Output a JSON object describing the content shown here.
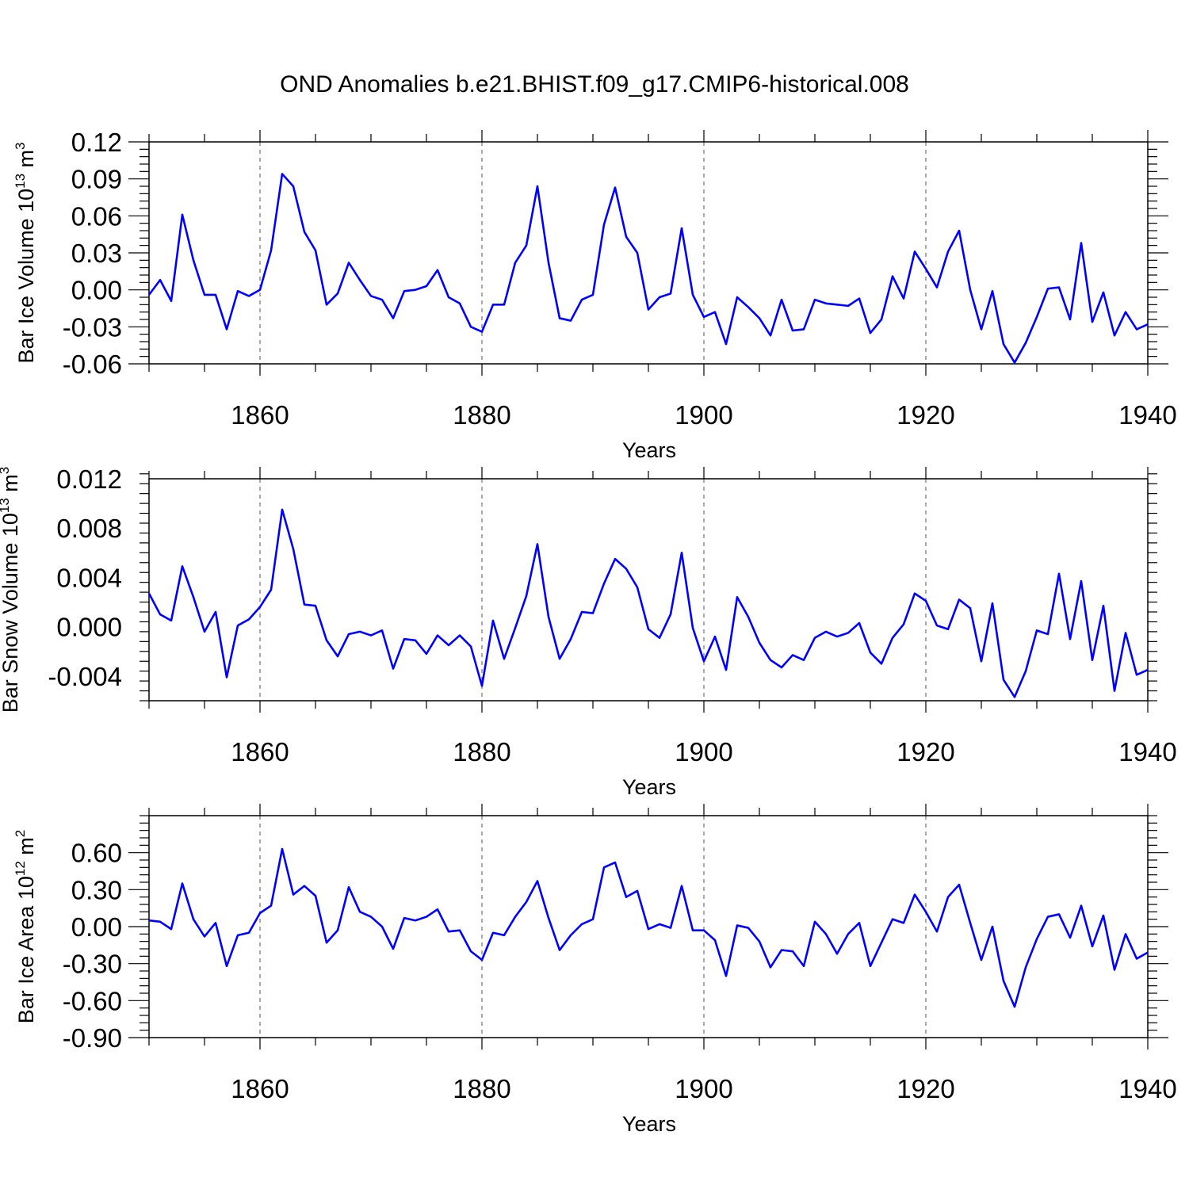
{
  "title": "OND Anomalies b.e21.BHIST.f09_g17.CMIP6-historical.008",
  "colors": {
    "line": "#0000ff",
    "axis": "#000000",
    "grid": "#555555"
  },
  "chart_data": [
    {
      "type": "line",
      "ylabel_main": "Bar Ice Volume 10",
      "ylabel_exp": "13",
      "ylabel_unit": "m",
      "ylabel_unit_exp": "3",
      "xlabel": "Years",
      "xlim": [
        1850,
        1940
      ],
      "ylim": [
        -0.06,
        0.12
      ],
      "xticks": [
        1860,
        1880,
        1900,
        1920,
        1940
      ],
      "yticks": [
        -0.06,
        -0.03,
        0.0,
        0.03,
        0.06,
        0.09,
        0.12
      ],
      "ytick_labels": [
        "-0.06",
        "-0.03",
        "0.00",
        "0.03",
        "0.06",
        "0.09",
        "0.12"
      ],
      "grid": "vertical dashed at major x ticks",
      "x": [
        1850,
        1851,
        1852,
        1853,
        1854,
        1855,
        1856,
        1857,
        1858,
        1859,
        1860,
        1861,
        1862,
        1863,
        1864,
        1865,
        1866,
        1867,
        1868,
        1869,
        1870,
        1871,
        1872,
        1873,
        1874,
        1875,
        1876,
        1877,
        1878,
        1879,
        1880,
        1881,
        1882,
        1883,
        1884,
        1885,
        1886,
        1887,
        1888,
        1889,
        1890,
        1891,
        1892,
        1893,
        1894,
        1895,
        1896,
        1897,
        1898,
        1899,
        1900,
        1901,
        1902,
        1903,
        1904,
        1905,
        1906,
        1907,
        1908,
        1909,
        1910,
        1911,
        1912,
        1913,
        1914,
        1915,
        1916,
        1917,
        1918,
        1919,
        1920,
        1921,
        1922,
        1923,
        1924,
        1925,
        1926,
        1927,
        1928,
        1929,
        1930,
        1931,
        1932,
        1933,
        1934,
        1935,
        1936,
        1937,
        1938,
        1939,
        1940
      ],
      "series": [
        {
          "values": [
            -0.004,
            0.008,
            -0.009,
            0.061,
            0.024,
            -0.004,
            -0.004,
            -0.032,
            -0.001,
            -0.005,
            0.0,
            0.032,
            0.094,
            0.084,
            0.047,
            0.032,
            -0.012,
            -0.003,
            0.022,
            0.008,
            -0.005,
            -0.008,
            -0.023,
            -0.001,
            0.0,
            0.003,
            0.016,
            -0.006,
            -0.011,
            -0.03,
            -0.034,
            -0.012,
            -0.012,
            0.022,
            0.036,
            0.084,
            0.022,
            -0.023,
            -0.025,
            -0.008,
            -0.004,
            0.053,
            0.083,
            0.043,
            0.03,
            -0.016,
            -0.006,
            -0.003,
            0.05,
            -0.004,
            -0.022,
            -0.018,
            -0.044,
            -0.006,
            -0.014,
            -0.023,
            -0.037,
            -0.008,
            -0.033,
            -0.032,
            -0.008,
            -0.011,
            -0.012,
            -0.013,
            -0.007,
            -0.035,
            -0.024,
            0.011,
            -0.007,
            0.031,
            0.017,
            0.002,
            0.031,
            0.048,
            0.0,
            -0.032,
            -0.001,
            -0.044,
            -0.059,
            -0.043,
            -0.022,
            0.001,
            0.002,
            -0.024,
            0.038,
            -0.026,
            -0.002,
            -0.037,
            -0.018,
            -0.032,
            -0.028
          ]
        }
      ]
    },
    {
      "type": "line",
      "ylabel_main": "Bar Snow Volume 10",
      "ylabel_exp": "13",
      "ylabel_unit": "m",
      "ylabel_unit_exp": "3",
      "xlabel": "Years",
      "xlim": [
        1850,
        1940
      ],
      "ylim": [
        -0.006,
        0.012
      ],
      "xticks": [
        1860,
        1880,
        1900,
        1920,
        1940
      ],
      "yticks": [
        -0.004,
        0.0,
        0.004,
        0.008,
        0.012
      ],
      "ytick_labels": [
        "-0.004",
        "0.000",
        "0.004",
        "0.008",
        "0.012"
      ],
      "grid": "vertical dashed at major x ticks",
      "x": [
        1850,
        1851,
        1852,
        1853,
        1854,
        1855,
        1856,
        1857,
        1858,
        1859,
        1860,
        1861,
        1862,
        1863,
        1864,
        1865,
        1866,
        1867,
        1868,
        1869,
        1870,
        1871,
        1872,
        1873,
        1874,
        1875,
        1876,
        1877,
        1878,
        1879,
        1880,
        1881,
        1882,
        1883,
        1884,
        1885,
        1886,
        1887,
        1888,
        1889,
        1890,
        1891,
        1892,
        1893,
        1894,
        1895,
        1896,
        1897,
        1898,
        1899,
        1900,
        1901,
        1902,
        1903,
        1904,
        1905,
        1906,
        1907,
        1908,
        1909,
        1910,
        1911,
        1912,
        1913,
        1914,
        1915,
        1916,
        1917,
        1918,
        1919,
        1920,
        1921,
        1922,
        1923,
        1924,
        1925,
        1926,
        1927,
        1928,
        1929,
        1930,
        1931,
        1932,
        1933,
        1934,
        1935,
        1936,
        1937,
        1938,
        1939,
        1940
      ],
      "series": [
        {
          "values": [
            0.0027,
            0.001,
            0.0005,
            0.0049,
            0.0024,
            -0.0004,
            0.0012,
            -0.0041,
            0.0001,
            0.0006,
            0.0016,
            0.003,
            0.0095,
            0.0063,
            0.0018,
            0.0017,
            -0.0011,
            -0.0024,
            -0.0006,
            -0.0004,
            -0.0007,
            -0.0003,
            -0.0034,
            -0.001,
            -0.0011,
            -0.0022,
            -0.0007,
            -0.0015,
            -0.0007,
            -0.0016,
            -0.0048,
            0.0005,
            -0.0026,
            -0.0001,
            0.0025,
            0.0067,
            0.0008,
            -0.0026,
            -0.001,
            0.0012,
            0.0011,
            0.0035,
            0.0055,
            0.0047,
            0.0032,
            -0.0002,
            -0.0009,
            0.001,
            0.006,
            -0.0001,
            -0.0028,
            -0.0008,
            -0.0035,
            0.0024,
            0.0008,
            -0.0013,
            -0.0027,
            -0.0033,
            -0.0023,
            -0.0027,
            -0.0009,
            -0.0004,
            -0.0008,
            -0.0005,
            0.0003,
            -0.0021,
            -0.003,
            -0.0009,
            0.0002,
            0.0027,
            0.0021,
            0.0001,
            -0.0002,
            0.0022,
            0.0015,
            -0.0028,
            0.0019,
            -0.0043,
            -0.0057,
            -0.0036,
            -0.0003,
            -0.0006,
            0.0043,
            -0.001,
            0.0037,
            -0.0027,
            0.0017,
            -0.0052,
            -0.0005,
            -0.0039,
            -0.0035
          ]
        }
      ]
    },
    {
      "type": "line",
      "ylabel_main": "Bar Ice Area 10",
      "ylabel_exp": "12",
      "ylabel_unit": "m",
      "ylabel_unit_exp": "2",
      "xlabel": "Years",
      "xlim": [
        1850,
        1940
      ],
      "ylim": [
        -0.9,
        0.9
      ],
      "xticks": [
        1860,
        1880,
        1900,
        1920,
        1940
      ],
      "yticks": [
        -0.9,
        -0.6,
        -0.3,
        0.0,
        0.3,
        0.6
      ],
      "ytick_labels": [
        "-0.90",
        "-0.60",
        "-0.30",
        "0.00",
        "0.30",
        "0.60"
      ],
      "grid": "vertical dashed at major x ticks",
      "x": [
        1850,
        1851,
        1852,
        1853,
        1854,
        1855,
        1856,
        1857,
        1858,
        1859,
        1860,
        1861,
        1862,
        1863,
        1864,
        1865,
        1866,
        1867,
        1868,
        1869,
        1870,
        1871,
        1872,
        1873,
        1874,
        1875,
        1876,
        1877,
        1878,
        1879,
        1880,
        1881,
        1882,
        1883,
        1884,
        1885,
        1886,
        1887,
        1888,
        1889,
        1890,
        1891,
        1892,
        1893,
        1894,
        1895,
        1896,
        1897,
        1898,
        1899,
        1900,
        1901,
        1902,
        1903,
        1904,
        1905,
        1906,
        1907,
        1908,
        1909,
        1910,
        1911,
        1912,
        1913,
        1914,
        1915,
        1916,
        1917,
        1918,
        1919,
        1920,
        1921,
        1922,
        1923,
        1924,
        1925,
        1926,
        1927,
        1928,
        1929,
        1930,
        1931,
        1932,
        1933,
        1934,
        1935,
        1936,
        1937,
        1938,
        1939,
        1940
      ],
      "series": [
        {
          "values": [
            0.05,
            0.04,
            -0.02,
            0.35,
            0.06,
            -0.08,
            0.03,
            -0.32,
            -0.07,
            -0.05,
            0.11,
            0.17,
            0.63,
            0.26,
            0.33,
            0.25,
            -0.13,
            -0.03,
            0.32,
            0.12,
            0.08,
            0.0,
            -0.18,
            0.07,
            0.05,
            0.08,
            0.14,
            -0.04,
            -0.03,
            -0.2,
            -0.27,
            -0.05,
            -0.07,
            0.08,
            0.2,
            0.37,
            0.07,
            -0.19,
            -0.07,
            0.02,
            0.06,
            0.48,
            0.52,
            0.24,
            0.29,
            -0.02,
            0.02,
            -0.01,
            0.33,
            -0.03,
            -0.03,
            -0.11,
            -0.4,
            0.01,
            -0.01,
            -0.12,
            -0.33,
            -0.19,
            -0.2,
            -0.32,
            0.04,
            -0.06,
            -0.22,
            -0.06,
            0.03,
            -0.32,
            -0.13,
            0.06,
            0.03,
            0.26,
            0.12,
            -0.04,
            0.24,
            0.34,
            0.03,
            -0.27,
            0.0,
            -0.44,
            -0.65,
            -0.33,
            -0.1,
            0.08,
            0.1,
            -0.09,
            0.17,
            -0.16,
            0.09,
            -0.35,
            -0.06,
            -0.26,
            -0.21
          ]
        }
      ]
    }
  ]
}
